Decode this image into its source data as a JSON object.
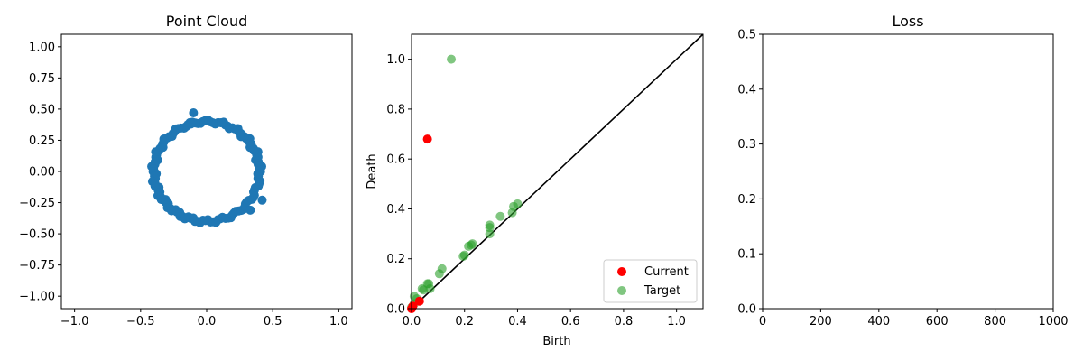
{
  "chart_data": [
    {
      "type": "scatter",
      "title": "Point Cloud",
      "xlabel": "",
      "ylabel": "",
      "xlim": [
        -1.1,
        1.1
      ],
      "ylim": [
        -1.1,
        1.1
      ],
      "xticks": [
        -1.0,
        -0.5,
        0.0,
        0.5,
        1.0
      ],
      "yticks": [
        -1.0,
        -0.75,
        -0.5,
        -0.25,
        0.0,
        0.25,
        0.5,
        0.75,
        1.0
      ],
      "xtick_labels": [
        "−1.0",
        "−0.5",
        "0.0",
        "0.5",
        "1.0"
      ],
      "ytick_labels": [
        "−1.00",
        "−0.75",
        "−0.50",
        "−0.25",
        "0.00",
        "0.25",
        "0.50",
        "0.75",
        "1.00"
      ],
      "color": "#1f77b4",
      "ring": {
        "cx": 0.0,
        "cy": 0.0,
        "r": 0.4,
        "n": 130
      },
      "outliers": [
        {
          "x": -0.1,
          "y": 0.47
        },
        {
          "x": 0.42,
          "y": -0.23
        },
        {
          "x": 0.33,
          "y": -0.31
        },
        {
          "x": -0.12,
          "y": 0.38
        }
      ]
    },
    {
      "type": "scatter",
      "title": "",
      "xlabel": "Birth",
      "ylabel": "Death",
      "xlim": [
        0.0,
        1.1
      ],
      "ylim": [
        0.0,
        1.1
      ],
      "xticks": [
        0.0,
        0.2,
        0.4,
        0.6,
        0.8,
        1.0
      ],
      "yticks": [
        0.0,
        0.2,
        0.4,
        0.6,
        0.8,
        1.0
      ],
      "xtick_labels": [
        "0.0",
        "0.2",
        "0.4",
        "0.6",
        "0.8",
        "1.0"
      ],
      "ytick_labels": [
        "0.0",
        "0.2",
        "0.4",
        "0.6",
        "0.8",
        "1.0"
      ],
      "diagonal": true,
      "legend": "lower-right",
      "series": [
        {
          "name": "Current",
          "color": "#ff0000",
          "alpha": 1.0,
          "points": [
            {
              "x": 0.06,
              "y": 0.68
            },
            {
              "x": 0.03,
              "y": 0.03
            },
            {
              "x": 0.0,
              "y": 0.0
            },
            {
              "x": 0.005,
              "y": 0.01
            }
          ]
        },
        {
          "name": "Target",
          "color": "#2ca02c",
          "alpha": 0.6,
          "points": [
            {
              "x": 0.15,
              "y": 1.0
            },
            {
              "x": 0.4,
              "y": 0.42
            },
            {
              "x": 0.385,
              "y": 0.41
            },
            {
              "x": 0.38,
              "y": 0.385
            },
            {
              "x": 0.335,
              "y": 0.37
            },
            {
              "x": 0.295,
              "y": 0.335
            },
            {
              "x": 0.295,
              "y": 0.325
            },
            {
              "x": 0.295,
              "y": 0.3
            },
            {
              "x": 0.23,
              "y": 0.26
            },
            {
              "x": 0.225,
              "y": 0.255
            },
            {
              "x": 0.215,
              "y": 0.25
            },
            {
              "x": 0.2,
              "y": 0.215
            },
            {
              "x": 0.195,
              "y": 0.21
            },
            {
              "x": 0.115,
              "y": 0.16
            },
            {
              "x": 0.105,
              "y": 0.14
            },
            {
              "x": 0.065,
              "y": 0.1
            },
            {
              "x": 0.06,
              "y": 0.1
            },
            {
              "x": 0.07,
              "y": 0.08
            },
            {
              "x": 0.04,
              "y": 0.08
            },
            {
              "x": 0.045,
              "y": 0.075
            },
            {
              "x": 0.01,
              "y": 0.05
            },
            {
              "x": 0.02,
              "y": 0.04
            },
            {
              "x": 0.01,
              "y": 0.02
            },
            {
              "x": 0.0,
              "y": 0.005
            }
          ]
        }
      ]
    },
    {
      "type": "line",
      "title": "Loss",
      "xlabel": "",
      "ylabel": "",
      "xlim": [
        0,
        1000
      ],
      "ylim": [
        0.0,
        0.5
      ],
      "xticks": [
        0,
        200,
        400,
        600,
        800,
        1000
      ],
      "yticks": [
        0.0,
        0.1,
        0.2,
        0.3,
        0.4,
        0.5
      ],
      "xtick_labels": [
        "0",
        "200",
        "400",
        "600",
        "800",
        "1000"
      ],
      "ytick_labels": [
        "0.0",
        "0.1",
        "0.2",
        "0.3",
        "0.4",
        "0.5"
      ],
      "series": []
    }
  ]
}
